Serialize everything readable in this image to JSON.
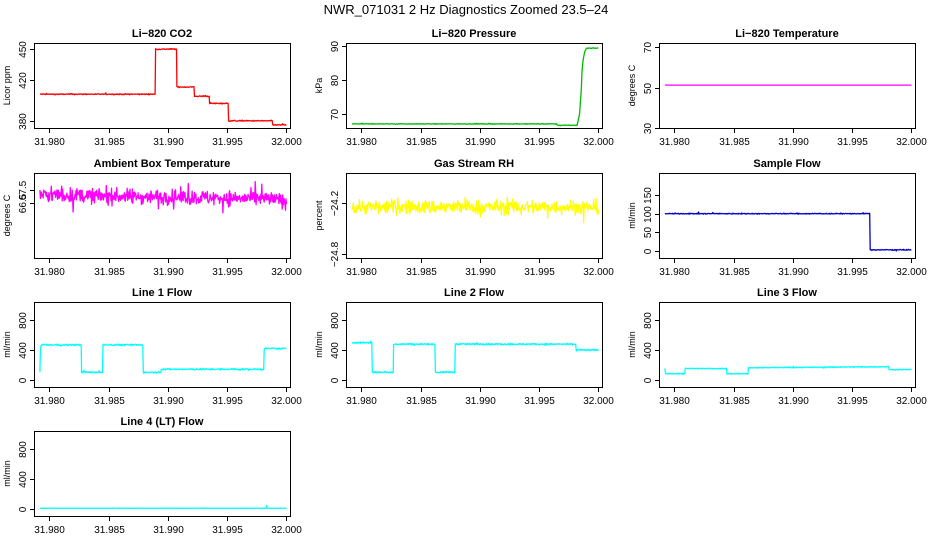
{
  "figure": {
    "title": "NWR_071031  2 Hz Diagnostics Zoomed 23.5–24"
  },
  "chart_data": [
    {
      "type": "line",
      "title": "Li−820 CO2",
      "ylabel": "Licor ppm",
      "color": "#ff0000",
      "xlim": [
        31.9787,
        32.0003
      ],
      "ylim": [
        373,
        456
      ],
      "xticks": [
        31.98,
        31.985,
        31.99,
        31.995,
        32.0
      ],
      "xtick_labels": [
        "31.980",
        "31.985",
        "31.990",
        "31.995",
        "32.000"
      ],
      "yticks": [
        380,
        420,
        450
      ],
      "ytick_labels": [
        "380",
        "420",
        "450"
      ],
      "noise": 0.5,
      "series": [
        {
          "x": [
            31.9792,
            31.98895,
            31.98896,
            31.99075,
            31.99076,
            31.9922,
            31.99221,
            31.9935,
            31.99351,
            31.9951,
            31.99511,
            31.9988,
            31.99881,
            31.99882,
            31.99883,
            32.0
          ],
          "y": [
            406,
            406,
            450,
            450,
            413,
            413,
            404,
            404,
            397,
            397,
            380,
            380,
            383,
            383,
            376,
            376
          ]
        }
      ]
    },
    {
      "type": "line",
      "title": "Li−820 Pressure",
      "ylabel": "kPa",
      "color": "#00bb00",
      "xlim": [
        31.9787,
        32.0003
      ],
      "ylim": [
        66,
        91
      ],
      "xticks": [
        31.98,
        31.985,
        31.99,
        31.995,
        32.0
      ],
      "xtick_labels": [
        "31.980",
        "31.985",
        "31.990",
        "31.995",
        "32.000"
      ],
      "yticks": [
        70,
        80,
        90
      ],
      "ytick_labels": [
        "70",
        "80",
        "90"
      ],
      "noise": 0.08,
      "series": [
        {
          "x": [
            31.9792,
            31.9965,
            31.99651,
            31.9982,
            31.9984,
            31.99855,
            31.9986,
            31.9987,
            31.99885,
            31.999,
            32.0
          ],
          "y": [
            67.2,
            67.2,
            66.8,
            66.8,
            70,
            77,
            82,
            86,
            88.5,
            89.5,
            89.5
          ]
        }
      ]
    },
    {
      "type": "line",
      "title": "Li−820 Temperature",
      "ylabel": "degrees C",
      "color": "#ff00ff",
      "xlim": [
        31.9787,
        32.0003
      ],
      "ylim": [
        30,
        72
      ],
      "xticks": [
        31.98,
        31.985,
        31.99,
        31.995,
        32.0
      ],
      "xtick_labels": [
        "31.980",
        "31.985",
        "31.990",
        "31.995",
        "32.000"
      ],
      "yticks": [
        30,
        50,
        70
      ],
      "ytick_labels": [
        "30",
        "50",
        "70"
      ],
      "noise": 0,
      "series": [
        {
          "x": [
            31.9792,
            32.0
          ],
          "y": [
            51.2,
            51.2
          ]
        }
      ]
    },
    {
      "type": "line",
      "title": "Ambient Box Temperature",
      "ylabel": "degrees C",
      "color": "#ff00ff",
      "xlim": [
        31.9787,
        32.0003
      ],
      "ylim": [
        62.2,
        68.8
      ],
      "xticks": [
        31.98,
        31.985,
        31.99,
        31.995,
        32.0
      ],
      "xtick_labels": [
        "31.980",
        "31.985",
        "31.990",
        "31.995",
        "32.000"
      ],
      "yticks": [
        66.5,
        67.5
      ],
      "ytick_labels": [
        "66.5",
        "67.5"
      ],
      "noise": 0.55,
      "series": [
        {
          "x": [
            31.9792,
            31.9985,
            32.0
          ],
          "y": [
            67.1,
            66.8,
            66.6
          ]
        }
      ]
    },
    {
      "type": "line",
      "title": "Gas Stream RH",
      "ylabel": "percent",
      "color": "#ffff00",
      "xlim": [
        31.9787,
        32.0003
      ],
      "ylim": [
        -24.85,
        -23.85
      ],
      "xticks": [
        31.98,
        31.985,
        31.99,
        31.995,
        32.0
      ],
      "xtick_labels": [
        "31.980",
        "31.985",
        "31.990",
        "31.995",
        "32.000"
      ],
      "yticks": [
        -24.8,
        -24.2
      ],
      "ytick_labels": [
        "−24.8",
        "−24.2"
      ],
      "noise": 0.08,
      "series": [
        {
          "x": [
            31.9792,
            32.0
          ],
          "y": [
            -24.25,
            -24.25
          ]
        }
      ]
    },
    {
      "type": "line",
      "title": "Sample Flow",
      "ylabel": "ml/min",
      "color": "#0000cc",
      "xlim": [
        31.9787,
        32.0003
      ],
      "ylim": [
        -20,
        210
      ],
      "xticks": [
        31.98,
        31.985,
        31.99,
        31.995,
        32.0
      ],
      "xtick_labels": [
        "31.980",
        "31.985",
        "31.990",
        "31.995",
        "32.000"
      ],
      "yticks": [
        0,
        50,
        100,
        150
      ],
      "ytick_labels": [
        "0",
        "50",
        "100",
        "150"
      ],
      "noise": 1.2,
      "series": [
        {
          "x": [
            31.9792,
            31.9965,
            31.99651,
            32.0
          ],
          "y": [
            100,
            100,
            2,
            2
          ]
        }
      ]
    },
    {
      "type": "line",
      "title": "Line 1 Flow",
      "ylabel": "ml/min",
      "color": "#00ffff",
      "xlim": [
        31.9787,
        32.0003
      ],
      "ylim": [
        -100,
        1050
      ],
      "xticks": [
        31.98,
        31.985,
        31.99,
        31.995,
        32.0
      ],
      "xtick_labels": [
        "31.980",
        "31.985",
        "31.990",
        "31.995",
        "32.000"
      ],
      "yticks": [
        0,
        400,
        800
      ],
      "ytick_labels": [
        "0",
        "400",
        "800"
      ],
      "noise": 10,
      "series": [
        {
          "x": [
            31.9792,
            31.97925,
            31.9827,
            31.98271,
            31.9845,
            31.98451,
            31.9879,
            31.98791,
            31.9894,
            31.98941,
            31.9981,
            31.99811,
            32.0
          ],
          "y": [
            100,
            470,
            470,
            100,
            100,
            470,
            470,
            100,
            100,
            140,
            140,
            420,
            420
          ]
        }
      ]
    },
    {
      "type": "line",
      "title": "Line 2 Flow",
      "ylabel": "ml/min",
      "color": "#00ffff",
      "xlim": [
        31.9787,
        32.0003
      ],
      "ylim": [
        -100,
        1050
      ],
      "xticks": [
        31.98,
        31.985,
        31.99,
        31.995,
        32.0
      ],
      "xtick_labels": [
        "31.980",
        "31.985",
        "31.990",
        "31.995",
        "32.000"
      ],
      "yticks": [
        0,
        400,
        800
      ],
      "ytick_labels": [
        "0",
        "400",
        "800"
      ],
      "noise": 10,
      "series": [
        {
          "x": [
            31.9792,
            31.9809,
            31.98091,
            31.9827,
            31.98271,
            31.9862,
            31.98621,
            31.9879,
            31.98791,
            31.9981,
            31.99811,
            32.0
          ],
          "y": [
            500,
            500,
            100,
            100,
            480,
            480,
            100,
            100,
            480,
            480,
            400,
            400
          ]
        }
      ]
    },
    {
      "type": "line",
      "title": "Line 3 Flow",
      "ylabel": "ml/min",
      "color": "#00ffff",
      "xlim": [
        31.9787,
        32.0003
      ],
      "ylim": [
        -100,
        1050
      ],
      "xticks": [
        31.98,
        31.985,
        31.99,
        31.995,
        32.0
      ],
      "xtick_labels": [
        "31.980",
        "31.985",
        "31.990",
        "31.995",
        "32.000"
      ],
      "yticks": [
        0,
        400,
        800
      ],
      "ytick_labels": [
        "0",
        "400",
        "800"
      ],
      "noise": 6,
      "series": [
        {
          "x": [
            31.9792,
            31.97925,
            31.9809,
            31.98091,
            31.9844,
            31.98441,
            31.9862,
            31.98621,
            31.9981,
            31.99811,
            32.0
          ],
          "y": [
            150,
            80,
            80,
            150,
            150,
            80,
            80,
            160,
            175,
            135,
            135
          ]
        }
      ]
    },
    {
      "type": "line",
      "title": "Line 4 (LT) Flow",
      "ylabel": "ml/min",
      "color": "#00ffff",
      "xlim": [
        31.9787,
        32.0003
      ],
      "ylim": [
        -100,
        1050
      ],
      "xticks": [
        31.98,
        31.985,
        31.99,
        31.995,
        32.0
      ],
      "xtick_labels": [
        "31.980",
        "31.985",
        "31.990",
        "31.995",
        "32.000"
      ],
      "yticks": [
        0,
        400,
        800
      ],
      "ytick_labels": [
        "0",
        "400",
        "800"
      ],
      "noise": 2,
      "series": [
        {
          "x": [
            31.9792,
            31.9983,
            31.99831,
            31.99835,
            31.99836,
            32.0
          ],
          "y": [
            5,
            5,
            40,
            40,
            5,
            5
          ]
        }
      ]
    }
  ]
}
